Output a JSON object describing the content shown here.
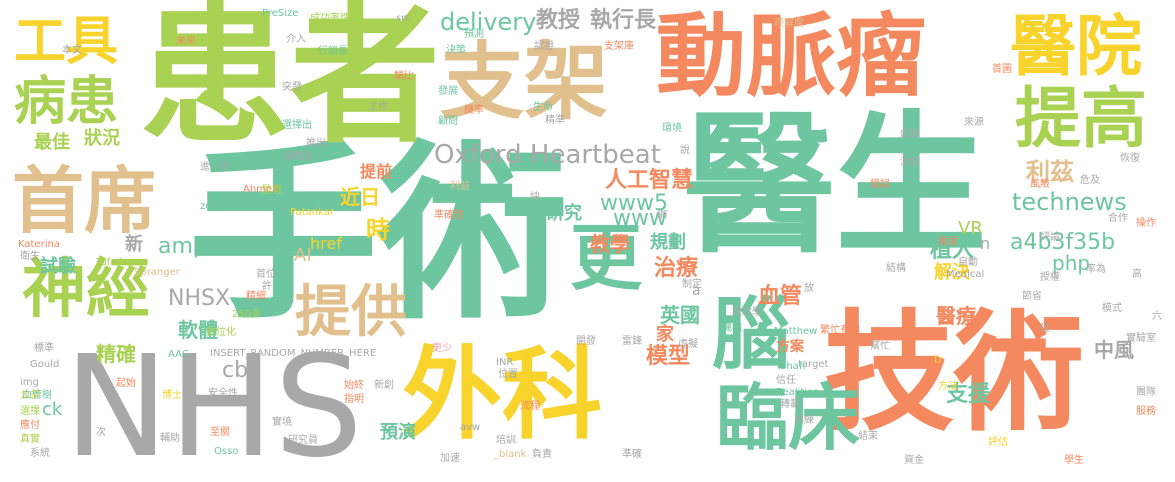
{
  "palette": {
    "green": "#6ec6a0",
    "lime": "#a9d152",
    "orange": "#f4895f",
    "yellow": "#f7d32b",
    "gray": "#a8a8a8",
    "tan": "#e1c08d",
    "pink": "#f4a0a9"
  },
  "words": [
    {
      "text": "醫生",
      "color": "#6ec6a0"
    },
    {
      "text": "手術",
      "color": "#6ec6a0"
    },
    {
      "text": "患者",
      "color": "#a9d152"
    },
    {
      "text": "技術",
      "color": "#f4895f"
    },
    {
      "text": "NHS",
      "color": "#a8a8a8"
    },
    {
      "text": "動脈瘤",
      "color": "#f4895f"
    },
    {
      "text": "支架",
      "color": "#e1c08d"
    },
    {
      "text": "外科",
      "color": "#f7d32b"
    },
    {
      "text": "首席",
      "color": "#e1c08d"
    },
    {
      "text": "神經",
      "color": "#a9d152"
    },
    {
      "text": "醫院",
      "color": "#f7d32b"
    },
    {
      "text": "提高",
      "color": "#a9d152"
    },
    {
      "text": "臨床",
      "color": "#6ec6a0"
    },
    {
      "text": "提供",
      "color": "#e1c08d"
    },
    {
      "text": "工具",
      "color": "#f7d32b"
    },
    {
      "text": "病患",
      "color": "#a9d152"
    },
    {
      "text": "更",
      "color": "#6ec6a0"
    },
    {
      "text": "腦",
      "color": "#6ec6a0"
    },
    {
      "text": "Oxford Heartbeat",
      "color": "#a8a8a8"
    },
    {
      "text": "delivery",
      "color": "#6ec6a0"
    },
    {
      "text": "教授",
      "color": "#a8a8a8"
    },
    {
      "text": "執行長",
      "color": "#a8a8a8"
    },
    {
      "text": "人工智慧",
      "color": "#f4895f"
    },
    {
      "text": "www5",
      "color": "#6ec6a0"
    },
    {
      "text": "www",
      "color": "#6ec6a0"
    },
    {
      "text": "technews",
      "color": "#6ec6a0"
    },
    {
      "text": "利茲",
      "color": "#e1c08d"
    },
    {
      "text": "a4b3f35b",
      "color": "#6ec6a0"
    },
    {
      "text": "php",
      "color": "#6ec6a0"
    },
    {
      "text": "植入",
      "color": "#6ec6a0"
    },
    {
      "text": "解決",
      "color": "#f7d32b"
    },
    {
      "text": "血管",
      "color": "#f4895f"
    },
    {
      "text": "治療",
      "color": "#f4895f"
    },
    {
      "text": "英國",
      "color": "#6ec6a0"
    },
    {
      "text": "模型",
      "color": "#f4895f"
    },
    {
      "text": "醫療",
      "color": "#f4895f"
    },
    {
      "text": "中風",
      "color": "#a8a8a8"
    },
    {
      "text": "支援",
      "color": "#6ec6a0"
    },
    {
      "text": "預演",
      "color": "#6ec6a0"
    },
    {
      "text": "教學",
      "color": "#f4895f"
    },
    {
      "text": "規劃",
      "color": "#6ec6a0"
    },
    {
      "text": "研究",
      "color": "#6ec6a0"
    },
    {
      "text": "時",
      "color": "#f7d32b"
    },
    {
      "text": "近日",
      "color": "#f7d32b"
    },
    {
      "text": "提前",
      "color": "#f4895f"
    },
    {
      "text": "href",
      "color": "#f7d32b"
    },
    {
      "text": "amp",
      "color": "#6ec6a0"
    },
    {
      "text": "tw",
      "color": "#6ec6a0"
    },
    {
      "text": "AI",
      "color": "#e1c08d"
    },
    {
      "text": "NHSX",
      "color": "#a8a8a8"
    },
    {
      "text": "軟體",
      "color": "#6ec6a0"
    },
    {
      "text": "cb",
      "color": "#a8a8a8"
    },
    {
      "text": "精確",
      "color": "#a9d152"
    },
    {
      "text": "ck",
      "color": "#6ec6a0"
    },
    {
      "text": "新",
      "color": "#a8a8a8"
    },
    {
      "text": "試驗",
      "color": "#6ec6a0"
    },
    {
      "text": "狀況",
      "color": "#a9d152"
    },
    {
      "text": "最佳",
      "color": "#a9d152"
    },
    {
      "text": "VR",
      "color": "#a9d152"
    },
    {
      "text": "家",
      "color": "#f4895f"
    },
    {
      "text": "方案",
      "color": "#f4895f"
    },
    {
      "text": "n",
      "color": "#a8a8a8"
    },
    {
      "text": "a",
      "color": "#a8a8a8"
    },
    {
      "text": "INSERT_RANDOM_NUMBER_HERE",
      "color": "#a8a8a8"
    },
    {
      "text": "PreSize",
      "color": "#6ec6a0"
    },
    {
      "text": "成功率性",
      "color": "#a9d152"
    },
    {
      "text": "src",
      "color": "#a8a8a8"
    },
    {
      "text": "target",
      "color": "#a8a8a8"
    },
    {
      "text": "Ahmed",
      "color": "#f4895f"
    },
    {
      "text": "zoneid",
      "color": "#6ec6a0"
    },
    {
      "text": "Patankar",
      "color": "#f7d32b"
    },
    {
      "text": "Katerina",
      "color": "#f4895f"
    },
    {
      "text": "Tufail",
      "color": "#a9d152"
    },
    {
      "text": "Spranger",
      "color": "#e1c08d"
    },
    {
      "text": "Matthew",
      "color": "#6ec6a0"
    },
    {
      "text": "Realities",
      "color": "#6ec6a0"
    },
    {
      "text": "Shafi",
      "color": "#6ec6a0"
    },
    {
      "text": "Medical",
      "color": "#a8a8a8"
    },
    {
      "text": "Gould",
      "color": "#a8a8a8"
    },
    {
      "text": "Osso",
      "color": "#6ec6a0"
    },
    {
      "text": "INR",
      "color": "#a8a8a8"
    },
    {
      "text": "avw",
      "color": "#a8a8a8"
    },
    {
      "text": "img",
      "color": "#a8a8a8"
    },
    {
      "text": "AAC",
      "color": "#6ec6a0"
    },
    {
      "text": "_blank",
      "color": "#e1c08d"
    },
    {
      "text": "250多",
      "color": "#a9d152"
    },
    {
      "text": "未來",
      "color": "#f4895f"
    },
    {
      "text": "本文",
      "color": "#a8a8a8"
    },
    {
      "text": "公益",
      "color": "#f7d32b"
    },
    {
      "text": "介入",
      "color": "#a8a8a8"
    },
    {
      "text": "行銷長",
      "color": "#6ec6a0"
    },
    {
      "text": "決策",
      "color": "#6ec6a0"
    },
    {
      "text": "預測",
      "color": "#6ec6a0"
    },
    {
      "text": "認證",
      "color": "#a8a8a8"
    },
    {
      "text": "支架庫",
      "color": "#f4895f"
    },
    {
      "text": "理解度",
      "color": "#e1c08d"
    },
    {
      "text": "首圖",
      "color": "#f4895f"
    },
    {
      "text": "類比",
      "color": "#f4895f"
    },
    {
      "text": "突發",
      "color": "#a8a8a8"
    },
    {
      "text": "發展",
      "color": "#6ec6a0"
    },
    {
      "text": "機率",
      "color": "#f4895f"
    },
    {
      "text": "工作",
      "color": "#a8a8a8"
    },
    {
      "text": "生命",
      "color": "#6ec6a0"
    },
    {
      "text": "精準",
      "color": "#a8a8a8"
    },
    {
      "text": "顧問",
      "color": "#6ec6a0"
    },
    {
      "text": "選擇出",
      "color": "#6ec6a0"
    },
    {
      "text": "推出",
      "color": "#a8a8a8"
    },
    {
      "text": "個性化",
      "color": "#a8a8a8"
    },
    {
      "text": "進一步",
      "color": "#a8a8a8"
    },
    {
      "text": "環境",
      "color": "#6ec6a0"
    },
    {
      "text": "說",
      "color": "#a8a8a8"
    },
    {
      "text": "創建",
      "color": "#a8a8a8"
    },
    {
      "text": "來源",
      "color": "#a8a8a8"
    },
    {
      "text": "恢復",
      "color": "#a8a8a8"
    },
    {
      "text": "危及",
      "color": "#a8a8a8"
    },
    {
      "text": "測試",
      "color": "#a8a8a8"
    },
    {
      "text": "錯誤",
      "color": "#f4895f"
    },
    {
      "text": "監管",
      "color": "#a9d152"
    },
    {
      "text": "利益",
      "color": "#e1c08d"
    },
    {
      "text": "準確性",
      "color": "#f4895f"
    },
    {
      "text": "快",
      "color": "#a8a8a8"
    },
    {
      "text": "網",
      "color": "#a8a8a8"
    },
    {
      "text": "風險",
      "color": "#f4895f"
    },
    {
      "text": "合作",
      "color": "#a8a8a8"
    },
    {
      "text": "操作",
      "color": "#f4895f"
    },
    {
      "text": "需求",
      "color": "#f4895f"
    },
    {
      "text": "評論",
      "color": "#a8a8a8"
    },
    {
      "text": "率為",
      "color": "#a8a8a8"
    },
    {
      "text": "結構",
      "color": "#a8a8a8"
    },
    {
      "text": "自動",
      "color": "#a8a8a8"
    },
    {
      "text": "衛生",
      "color": "#a8a8a8"
    },
    {
      "text": "首位",
      "color": "#a8a8a8"
    },
    {
      "text": "授權",
      "color": "#a8a8a8"
    },
    {
      "text": "高",
      "color": "#a8a8a8"
    },
    {
      "text": "許",
      "color": "#a8a8a8"
    },
    {
      "text": "精細",
      "color": "#f4895f"
    },
    {
      "text": "制定",
      "color": "#a8a8a8"
    },
    {
      "text": "放射學",
      "color": "#a8a8a8"
    },
    {
      "text": "放",
      "color": "#a8a8a8"
    },
    {
      "text": "節省",
      "color": "#a8a8a8"
    },
    {
      "text": "數位化",
      "color": "#a9d152"
    },
    {
      "text": "機構",
      "color": "#6ec6a0"
    },
    {
      "text": "繁忙有價",
      "color": "#f4895f"
    },
    {
      "text": "模式",
      "color": "#a8a8a8"
    },
    {
      "text": "位",
      "color": "#a8a8a8"
    },
    {
      "text": "六",
      "color": "#a8a8a8"
    },
    {
      "text": "標準",
      "color": "#a8a8a8"
    },
    {
      "text": "更少",
      "color": "#f4a0a9"
    },
    {
      "text": "開發",
      "color": "#a8a8a8"
    },
    {
      "text": "雷鋒",
      "color": "#a8a8a8"
    },
    {
      "text": "虛擬",
      "color": "#a8a8a8"
    },
    {
      "text": "幫忙",
      "color": "#a8a8a8"
    },
    {
      "text": "實驗室",
      "color": "#a8a8a8"
    },
    {
      "text": "D",
      "color": "#f7d32b"
    },
    {
      "text": "起始",
      "color": "#f4895f"
    },
    {
      "text": "血管樹",
      "color": "#6ec6a0"
    },
    {
      "text": "選擇",
      "color": "#a9d152"
    },
    {
      "text": "應付",
      "color": "#f4895f"
    },
    {
      "text": "真實",
      "color": "#a9d152"
    },
    {
      "text": "系統",
      "color": "#a8a8a8"
    },
    {
      "text": "博士",
      "color": "#f7d32b"
    },
    {
      "text": "安全性",
      "color": "#a8a8a8"
    },
    {
      "text": "始終",
      "color": "#f4895f"
    },
    {
      "text": "指明",
      "color": "#f4895f"
    },
    {
      "text": "新創",
      "color": "#a8a8a8"
    },
    {
      "text": "位置",
      "color": "#a8a8a8"
    },
    {
      "text": "流程",
      "color": "#f4895f"
    },
    {
      "text": "培訓",
      "color": "#a8a8a8"
    },
    {
      "text": "轉載",
      "color": "#a8a8a8"
    },
    {
      "text": "信任",
      "color": "#a8a8a8"
    },
    {
      "text": "方法",
      "color": "#f7d32b"
    },
    {
      "text": "團隊",
      "color": "#a8a8a8"
    },
    {
      "text": "服務",
      "color": "#f4895f"
    },
    {
      "text": "次",
      "color": "#a8a8a8"
    },
    {
      "text": "輔助",
      "color": "#a8a8a8"
    },
    {
      "text": "至關",
      "color": "#f4895f"
    },
    {
      "text": "實境",
      "color": "#a8a8a8"
    },
    {
      "text": "研究員",
      "color": "#a8a8a8"
    },
    {
      "text": "加速",
      "color": "#a8a8a8"
    },
    {
      "text": "負責",
      "color": "#a8a8a8"
    },
    {
      "text": "準確",
      "color": "#a8a8a8"
    },
    {
      "text": "熟練",
      "color": "#a8a8a8"
    },
    {
      "text": "結束",
      "color": "#a8a8a8"
    },
    {
      "text": "評估",
      "color": "#f7d32b"
    },
    {
      "text": "資金",
      "color": "#a8a8a8"
    },
    {
      "text": "學生",
      "color": "#f4895f"
    }
  ]
}
